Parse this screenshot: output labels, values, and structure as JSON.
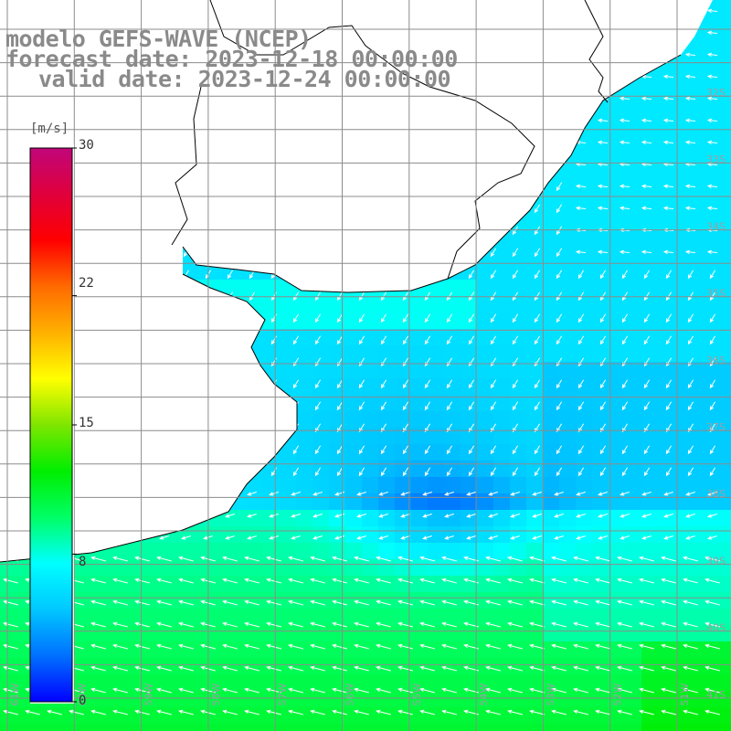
{
  "title": {
    "line1": "modelo GEFS-WAVE (NCEP)",
    "line2": "forecast date: 2023-12-18 00:00:00",
    "line3": "valid date: 2023-12-24 00:00:00"
  },
  "colorbar": {
    "unit": "[m/s]",
    "ticks": [
      "30",
      "22",
      "15",
      "8",
      "0"
    ],
    "tick_values": [
      30,
      22,
      15,
      8,
      0
    ],
    "range": [
      0,
      30
    ],
    "colors": [
      "#0000ff",
      "#0070ff",
      "#00c8ff",
      "#00ffff",
      "#00ff66",
      "#00ee00",
      "#7fe600",
      "#ffff00",
      "#ffb000",
      "#ff6a00",
      "#ff0000",
      "#e0003c",
      "#c0067a"
    ]
  },
  "lat_labels": [
    "32S",
    "33S",
    "34S",
    "35S",
    "36S",
    "37S",
    "38S",
    "39S",
    "40S",
    "41S"
  ],
  "lon_labels": [
    "61W",
    "60W",
    "59W",
    "58W",
    "57W",
    "56W",
    "55W",
    "54W",
    "53W",
    "52W",
    "51W"
  ],
  "colors": {
    "land": "#ffffff",
    "coast": "#000000",
    "grid": "#8c8c8c",
    "arrow": "#ffffff",
    "title_text": "#8a8a8a"
  }
}
